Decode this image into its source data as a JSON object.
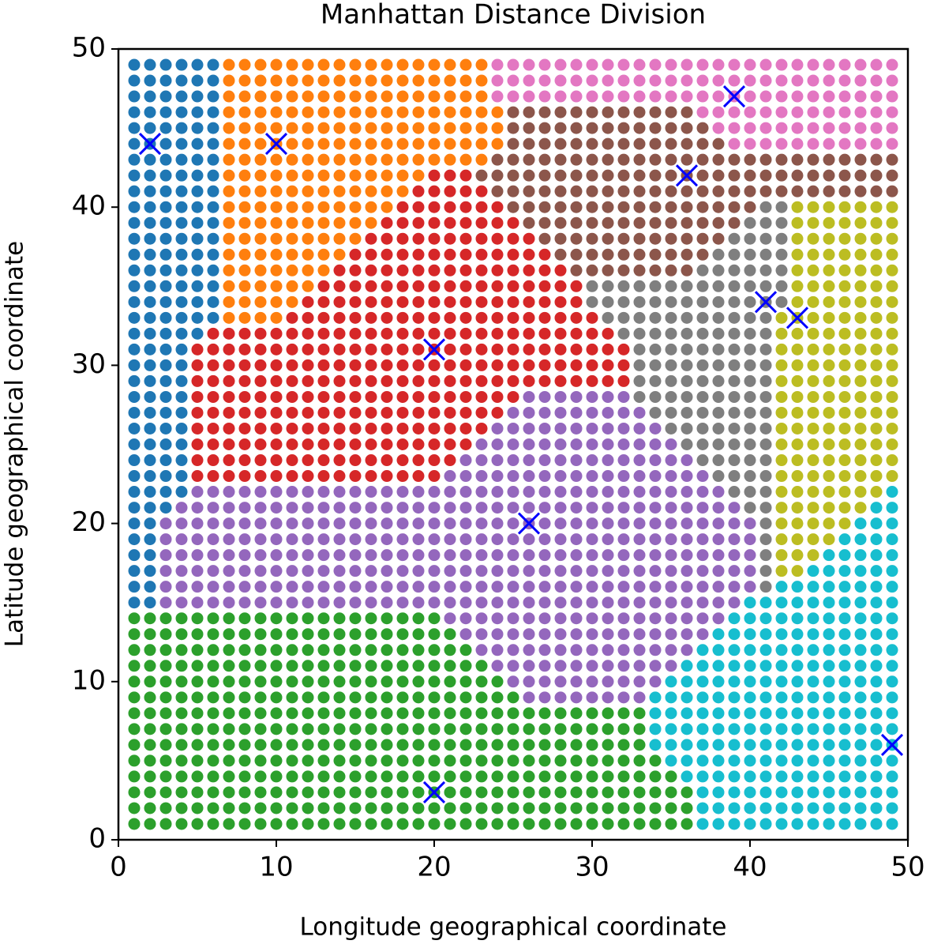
{
  "chart_data": {
    "type": "scatter",
    "title": "Manhattan Distance Division",
    "x_label": "Longitude geographical coordinate",
    "y_label": "Latitude geographical coordinate",
    "points": {
      "x": [
        1,
        2,
        3,
        4,
        5,
        6,
        7,
        8,
        9,
        10,
        11,
        12,
        13,
        14,
        15,
        16,
        17,
        18,
        19,
        20,
        21,
        22,
        23,
        24,
        25,
        26,
        27,
        28,
        29,
        30,
        31,
        32,
        33,
        34,
        35,
        36,
        37,
        38,
        39,
        40,
        41,
        42,
        43,
        44,
        45,
        46,
        47,
        48,
        49
      ],
      "y": [
        1,
        2,
        3,
        4,
        5,
        6,
        7,
        8,
        9,
        10,
        11,
        12,
        13,
        14,
        15,
        16,
        17,
        18,
        19,
        20,
        21,
        22,
        23,
        24,
        25,
        26,
        27,
        28,
        29,
        30,
        31,
        32,
        33,
        34,
        35,
        36,
        37,
        38,
        39,
        40,
        41,
        42,
        43,
        44,
        45,
        46,
        47,
        48,
        49
      ]
    },
    "colors": [
      "#1f77b4",
      "#ff7f0e",
      "#2ca02c",
      "#d62728",
      "#9467bd",
      "#8c564b",
      "#e377c2",
      "#7f7f7f",
      "#bcbd22",
      "#17becf"
    ],
    "centers": {
      "x": [
        2,
        10,
        20,
        20,
        26,
        36,
        39,
        41,
        43,
        49
      ],
      "y": [
        44,
        44,
        3,
        31,
        20,
        42,
        47,
        34,
        33,
        6
      ],
      "color": "#0000ff",
      "marker": "x"
    },
    "xlim": [
      0,
      50
    ],
    "ylim": [
      0,
      50
    ],
    "xticks": [
      0,
      10,
      20,
      30,
      40,
      50
    ],
    "yticks": [
      0,
      10,
      20,
      30,
      40,
      50
    ]
  }
}
